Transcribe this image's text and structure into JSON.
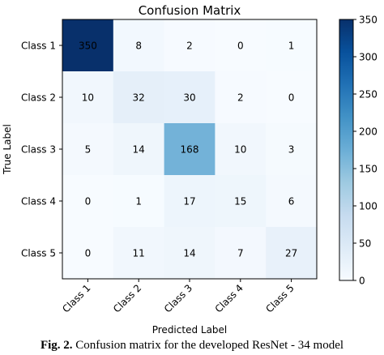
{
  "chart_data": {
    "type": "heatmap",
    "title": "Confusion Matrix",
    "xlabel": "Predicted Label",
    "ylabel": "True Label",
    "x_categories": [
      "Class 1",
      "Class 2",
      "Class 3",
      "Class 4",
      "Class 5"
    ],
    "y_categories": [
      "Class 1",
      "Class 2",
      "Class 3",
      "Class 4",
      "Class 5"
    ],
    "values": [
      [
        350,
        8,
        2,
        0,
        1
      ],
      [
        10,
        32,
        30,
        2,
        0
      ],
      [
        5,
        14,
        168,
        10,
        3
      ],
      [
        0,
        1,
        17,
        15,
        6
      ],
      [
        0,
        11,
        14,
        7,
        27
      ]
    ],
    "colormap": "Blues",
    "colorbar": {
      "min": 0,
      "max": 350,
      "ticks": [
        0,
        50,
        100,
        150,
        200,
        250,
        300,
        350
      ]
    }
  },
  "caption": {
    "label": "Fig. 2.",
    "text": "Confusion matrix for the developed ResNet - 34 model"
  }
}
